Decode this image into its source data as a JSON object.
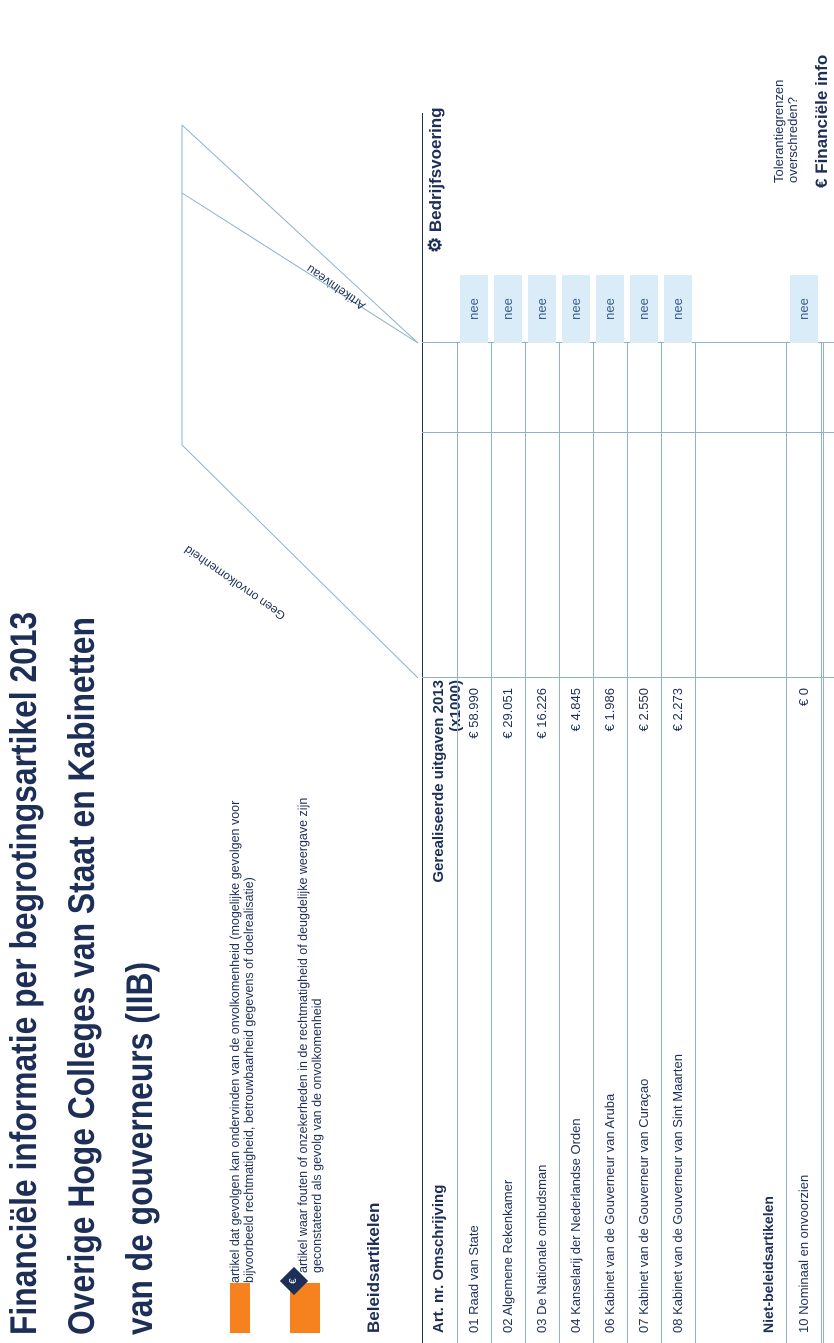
{
  "title": {
    "line1": "Financiële informatie per begrotingsartikel 2013",
    "line2": "Overige Hoge Colleges van Staat en Kabinetten",
    "line3": "van de gouverneurs (IIB)"
  },
  "legend": {
    "item1": "artikel dat gevolgen kan ondervinden van de onvolkomenheid (mogelijke gevolgen voor bijvoorbeeld rechtmatigheid, betrouwbaarheid gegevens of doelrealisatie)",
    "item2": "artikel waar fouten of onzekerheden in de rechtmatigheid of deugdelijke weergave zijn geconstateerd als gevolg van de onvolkomenheid",
    "colors": {
      "orange": "#f5821f",
      "navy": "#1d2f57",
      "light_blue": "#d9ecf7"
    }
  },
  "top_headers": {
    "bedrijfsvoering": "Bedrijfsvoering",
    "bedrijfsvoering_icon": "gear-icon",
    "financiele_info": "Financiële info",
    "financiele_info_icon": "euro-icon",
    "tolerantie": "Tolerantiegrenzen overschreden?",
    "col_geen": "Geen onvolkomenheid",
    "col_artikel": "Artikelniveau"
  },
  "table": {
    "section_beleid": "Beleidsartikelen",
    "col_art": "Art. nr. Omschrijving",
    "col_uitgaven": "Gerealiseerde uitgaven 2013 (x1000)",
    "rows": [
      {
        "label": "01 Raad van State",
        "value": "€ 58.990",
        "artikel": "nee"
      },
      {
        "label": "02 Algemene Rekenkamer",
        "value": "€ 29.051",
        "artikel": "nee"
      },
      {
        "label": "03 De Nationale ombudsman",
        "value": "€ 16.226",
        "artikel": "nee"
      },
      {
        "label": "04 Kanselarij der Nederlandse Orden",
        "value": "€ 4.845",
        "artikel": "nee"
      },
      {
        "label": "06 Kabinet van de Gouverneur van Aruba",
        "value": "€ 1.986",
        "artikel": "nee"
      },
      {
        "label": "07 Kabinet van de Gouverneur van Curaçao",
        "value": "€ 2.550",
        "artikel": "nee"
      },
      {
        "label": "08 Kabinet van de Gouverneur van Sint Maarten",
        "value": "€ 2.273",
        "artikel": "nee"
      }
    ],
    "section_niet": "Niet-beleidsartikelen",
    "niet_rows": [
      {
        "label": "10 Nominaal en onvoorzien",
        "value": "€ 0",
        "artikel": "nee"
      }
    ]
  }
}
